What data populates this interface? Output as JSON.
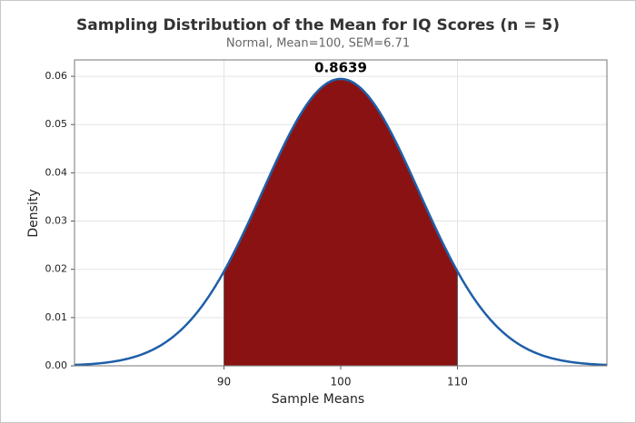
{
  "chart_data": {
    "type": "distribution",
    "title": "Sampling Distribution of the Mean for IQ Scores (n = 5)",
    "subtitle": "Normal, Mean=100, SEM=6.71",
    "x_label": "Sample Means",
    "y_label": "Density",
    "mean": 100,
    "sem": 6.71,
    "shade": [
      90,
      110
    ],
    "area": 0.8639,
    "area_label": "0.8639",
    "line_color": "#1f5fa8",
    "shade_color": "#8b1212",
    "xlim": [
      77.19,
      122.81
    ],
    "xticks": [
      90,
      100,
      110
    ],
    "ylim": [
      0,
      0.0634
    ],
    "yticks": [
      {
        "value": 0,
        "label": "0.00"
      },
      {
        "value": 0.01,
        "label": "0.01"
      },
      {
        "value": 0.02,
        "label": "0.02"
      },
      {
        "value": 0.03,
        "label": "0.03"
      },
      {
        "value": 0.04,
        "label": "0.04"
      },
      {
        "value": 0.05,
        "label": "0.05"
      },
      {
        "value": 0.06,
        "label": "0.06"
      }
    ],
    "grid": true
  }
}
